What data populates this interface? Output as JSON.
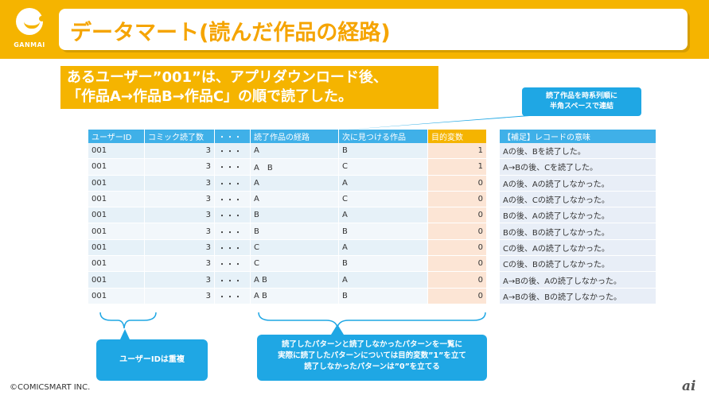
{
  "header": {
    "title": "データマート(読んだ作品の経路)",
    "logo_text": "GANMAI"
  },
  "note": {
    "line1": "あるユーザー”001”は、アプリダウンロード後、",
    "line2": "「作品A→作品B→作品C」の順で読了した。"
  },
  "callouts": {
    "right_line1": "読了作品を時系列順に",
    "right_line2": "半角スペースで連結",
    "left": "ユーザーIDは重複",
    "mid_line1": "読了したパターンと読了しなかったパターンを一覧に",
    "mid_line2": "実際に読了したパターンについては目的変数”1”を立て",
    "mid_line3": "読了しなかったパターンは”0”を立てる"
  },
  "table": {
    "headers": [
      "ユーザーID",
      "コミック読了数",
      "・・・",
      "読了作品の経路",
      "次に見つける作品",
      "目的変数"
    ],
    "rows": [
      [
        "001",
        "3",
        "・・・",
        "A",
        "B",
        "1"
      ],
      [
        "001",
        "3",
        "・・・",
        "A　B",
        "C",
        "1"
      ],
      [
        "001",
        "3",
        "・・・",
        "A",
        "A",
        "0"
      ],
      [
        "001",
        "3",
        "・・・",
        "A",
        "C",
        "0"
      ],
      [
        "001",
        "3",
        "・・・",
        "B",
        "A",
        "0"
      ],
      [
        "001",
        "3",
        "・・・",
        "B",
        "B",
        "0"
      ],
      [
        "001",
        "3",
        "・・・",
        "C",
        "A",
        "0"
      ],
      [
        "001",
        "3",
        "・・・",
        "C",
        "B",
        "0"
      ],
      [
        "001",
        "3",
        "・・・",
        "A B",
        "A",
        "0"
      ],
      [
        "001",
        "3",
        "・・・",
        "A B",
        "B",
        "0"
      ]
    ]
  },
  "side_table": {
    "header": "【補足】レコードの意味",
    "rows": [
      "Aの後、Bを読了した。",
      "A→Bの後、Cを読了した。",
      "Aの後、Aの読了しなかった。",
      "Aの後、Cの読了しなかった。",
      "Bの後、Aの読了しなかった。",
      "Bの後、Bの読了しなかった。",
      "Cの後、Aの読了しなかった。",
      "Cの後、Bの読了しなかった。",
      "A→Bの後、Aの読了しなかった。",
      "A→Bの後、Bの読了しなかった。"
    ]
  },
  "footer": {
    "copyright": "©COMICSMART INC.",
    "brand": "ai"
  },
  "colors": {
    "accent": "#f5b400",
    "header_blue": "#3fb0e8",
    "callout_blue": "#1fa7e4",
    "target_fill": "#fce5d5"
  }
}
